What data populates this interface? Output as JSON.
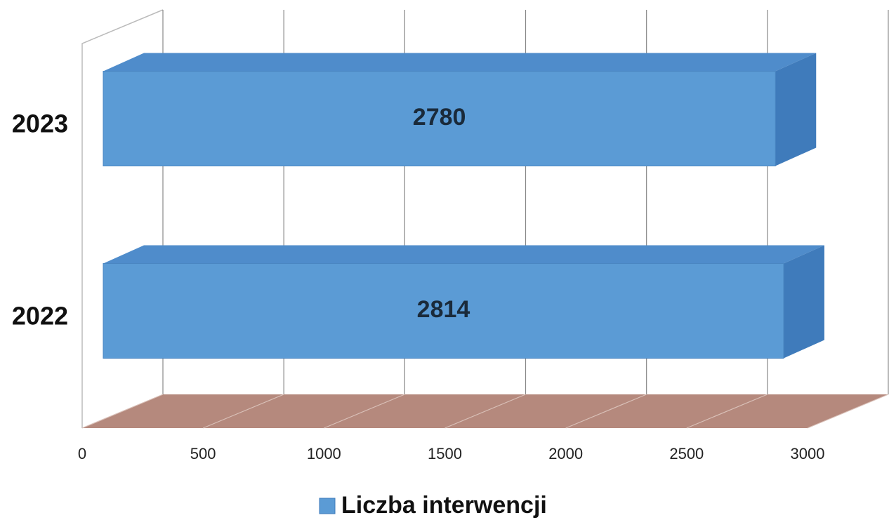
{
  "chart_data": {
    "type": "bar",
    "orientation": "horizontal",
    "categories": [
      "2022",
      "2023"
    ],
    "series": [
      {
        "name": "Liczba interwencji",
        "color": "#5b9bd5",
        "values": [
          2814,
          2780
        ]
      }
    ],
    "xlim": [
      0,
      3000
    ],
    "xticks": [
      0,
      500,
      1000,
      1500,
      2000,
      2500,
      3000
    ],
    "grid": true,
    "floor_color": "#b5897d",
    "legend": "bottom"
  }
}
